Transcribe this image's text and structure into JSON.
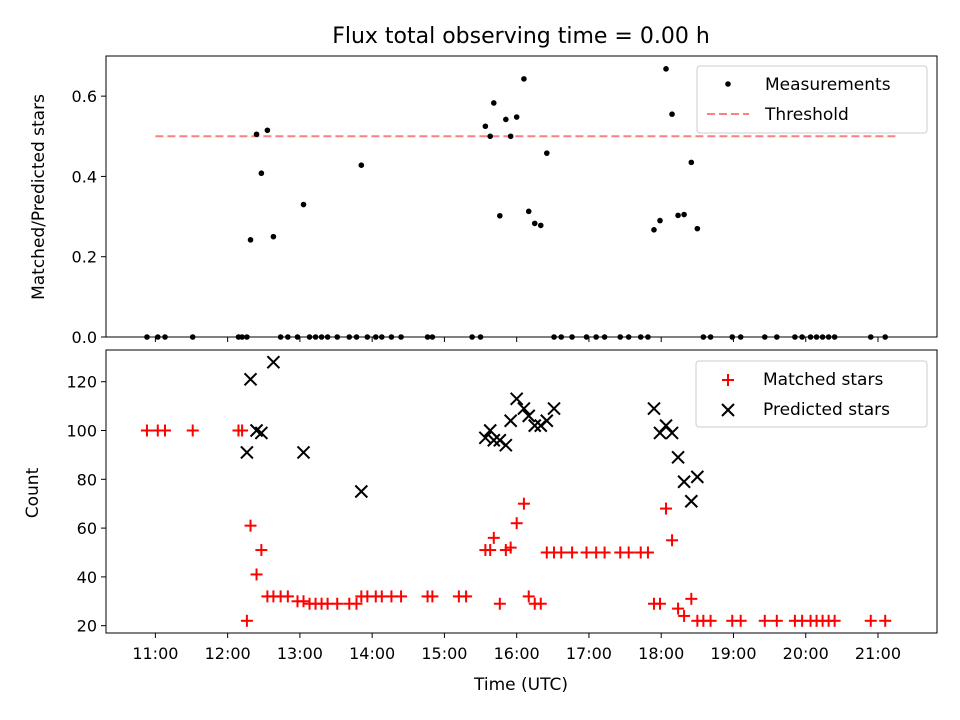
{
  "chart_data": [
    {
      "type": "scatter",
      "title": "Flux total observing time = 0.00 h",
      "ylabel": "Matched/Predicted stars",
      "ylim": [
        0,
        0.7
      ],
      "yticks": [
        "0.0",
        "0.2",
        "0.4",
        "0.6"
      ],
      "legend": "top-right",
      "grid": false,
      "threshold": {
        "name": "Threshold",
        "value": 0.5,
        "x_start": "11:00",
        "x_end": "21:15",
        "color": "#ff7f7f"
      },
      "series": [
        {
          "name": "Measurements",
          "color": "#000000",
          "points": [
            [
              "10:53",
              0
            ],
            [
              "11:02",
              0
            ],
            [
              "11:08",
              0
            ],
            [
              "11:31",
              0
            ],
            [
              "12:09",
              0
            ],
            [
              "12:12",
              0
            ],
            [
              "12:16",
              0
            ],
            [
              "12:19",
              0.242
            ],
            [
              "12:24",
              0.505
            ],
            [
              "12:28",
              0.408
            ],
            [
              "12:33",
              0.515
            ],
            [
              "12:38",
              0.25
            ],
            [
              "12:44",
              0
            ],
            [
              "12:50",
              0
            ],
            [
              "12:58",
              0
            ],
            [
              "13:03",
              0.33
            ],
            [
              "13:08",
              0
            ],
            [
              "13:13",
              0
            ],
            [
              "13:18",
              0
            ],
            [
              "13:23",
              0
            ],
            [
              "13:31",
              0
            ],
            [
              "13:41",
              0
            ],
            [
              "13:47",
              0
            ],
            [
              "13:51",
              0.428
            ],
            [
              "13:56",
              0
            ],
            [
              "14:03",
              0
            ],
            [
              "14:08",
              0
            ],
            [
              "14:16",
              0
            ],
            [
              "14:24",
              0
            ],
            [
              "14:46",
              0
            ],
            [
              "14:50",
              0
            ],
            [
              "15:23",
              0
            ],
            [
              "15:30",
              0
            ],
            [
              "15:34",
              0.525
            ],
            [
              "15:38",
              0.5
            ],
            [
              "15:41",
              0.583
            ],
            [
              "15:46",
              0.302
            ],
            [
              "15:51",
              0.542
            ],
            [
              "15:55",
              0.5
            ],
            [
              "16:00",
              0.548
            ],
            [
              "16:06",
              0.643
            ],
            [
              "16:10",
              0.313
            ],
            [
              "16:15",
              0.283
            ],
            [
              "16:20",
              0.278
            ],
            [
              "16:25",
              0.458
            ],
            [
              "16:31",
              0
            ],
            [
              "16:37",
              0
            ],
            [
              "16:46",
              0
            ],
            [
              "16:58",
              0
            ],
            [
              "17:06",
              0
            ],
            [
              "17:13",
              0
            ],
            [
              "17:26",
              0
            ],
            [
              "17:33",
              0
            ],
            [
              "17:43",
              0
            ],
            [
              "17:49",
              0
            ],
            [
              "17:54",
              0.267
            ],
            [
              "17:59",
              0.29
            ],
            [
              "18:04",
              0.668
            ],
            [
              "18:09",
              0.555
            ],
            [
              "18:14",
              0.303
            ],
            [
              "18:19",
              0.305
            ],
            [
              "18:25",
              0.435
            ],
            [
              "18:30",
              0.27
            ],
            [
              "18:35",
              0
            ],
            [
              "18:41",
              0
            ],
            [
              "18:59",
              0
            ],
            [
              "19:06",
              0
            ],
            [
              "19:26",
              0
            ],
            [
              "19:36",
              0
            ],
            [
              "19:51",
              0
            ],
            [
              "19:57",
              0
            ],
            [
              "20:04",
              0
            ],
            [
              "20:09",
              0
            ],
            [
              "20:14",
              0
            ],
            [
              "20:19",
              0
            ],
            [
              "20:24",
              0
            ],
            [
              "20:54",
              0
            ],
            [
              "21:06",
              0
            ]
          ]
        }
      ]
    },
    {
      "type": "scatter",
      "xlabel": "Time (UTC)",
      "ylabel": "Count",
      "xlim": [
        "10:19",
        "21:49"
      ],
      "ylim": [
        17,
        133
      ],
      "xticks": [
        "11:00",
        "12:00",
        "13:00",
        "14:00",
        "15:00",
        "16:00",
        "17:00",
        "18:00",
        "19:00",
        "20:00",
        "21:00"
      ],
      "yticks": [
        "20",
        "40",
        "60",
        "80",
        "100",
        "120"
      ],
      "legend": "top-right",
      "grid": false,
      "series": [
        {
          "name": "Matched stars",
          "color": "#ff0000",
          "points": [
            [
              "10:53",
              100
            ],
            [
              "11:02",
              100
            ],
            [
              "11:08",
              100
            ],
            [
              "11:31",
              100
            ],
            [
              "12:09",
              100
            ],
            [
              "12:12",
              100
            ],
            [
              "12:16",
              22
            ],
            [
              "12:19",
              61
            ],
            [
              "12:24",
              41
            ],
            [
              "12:28",
              51
            ],
            [
              "12:33",
              32
            ],
            [
              "12:38",
              32
            ],
            [
              "12:44",
              32
            ],
            [
              "12:50",
              32
            ],
            [
              "12:58",
              30
            ],
            [
              "13:03",
              30
            ],
            [
              "13:08",
              29
            ],
            [
              "13:13",
              29
            ],
            [
              "13:18",
              29
            ],
            [
              "13:23",
              29
            ],
            [
              "13:31",
              29
            ],
            [
              "13:41",
              29
            ],
            [
              "13:47",
              29
            ],
            [
              "13:51",
              32
            ],
            [
              "13:56",
              32
            ],
            [
              "14:03",
              32
            ],
            [
              "14:08",
              32
            ],
            [
              "14:16",
              32
            ],
            [
              "14:24",
              32
            ],
            [
              "14:46",
              32
            ],
            [
              "14:50",
              32
            ],
            [
              "15:12",
              32
            ],
            [
              "15:18",
              32
            ],
            [
              "15:34",
              51
            ],
            [
              "15:38",
              51
            ],
            [
              "15:41",
              56
            ],
            [
              "15:46",
              29
            ],
            [
              "15:51",
              51
            ],
            [
              "15:55",
              52
            ],
            [
              "16:00",
              62
            ],
            [
              "16:06",
              70
            ],
            [
              "16:10",
              32
            ],
            [
              "16:15",
              29
            ],
            [
              "16:20",
              29
            ],
            [
              "16:25",
              50
            ],
            [
              "16:31",
              50
            ],
            [
              "16:37",
              50
            ],
            [
              "16:46",
              50
            ],
            [
              "16:58",
              50
            ],
            [
              "17:06",
              50
            ],
            [
              "17:13",
              50
            ],
            [
              "17:26",
              50
            ],
            [
              "17:33",
              50
            ],
            [
              "17:43",
              50
            ],
            [
              "17:49",
              50
            ],
            [
              "17:54",
              29
            ],
            [
              "17:59",
              29
            ],
            [
              "18:04",
              68
            ],
            [
              "18:09",
              55
            ],
            [
              "18:14",
              27
            ],
            [
              "18:19",
              24
            ],
            [
              "18:25",
              31
            ],
            [
              "18:30",
              22
            ],
            [
              "18:35",
              22
            ],
            [
              "18:41",
              22
            ],
            [
              "18:59",
              22
            ],
            [
              "19:06",
              22
            ],
            [
              "19:26",
              22
            ],
            [
              "19:36",
              22
            ],
            [
              "19:51",
              22
            ],
            [
              "19:57",
              22
            ],
            [
              "20:04",
              22
            ],
            [
              "20:09",
              22
            ],
            [
              "20:14",
              22
            ],
            [
              "20:19",
              22
            ],
            [
              "20:24",
              22
            ],
            [
              "20:54",
              22
            ],
            [
              "21:06",
              22
            ]
          ]
        },
        {
          "name": "Predicted stars",
          "color": "#000000",
          "points": [
            [
              "12:16",
              91
            ],
            [
              "12:19",
              121
            ],
            [
              "12:24",
              100
            ],
            [
              "12:28",
              99
            ],
            [
              "12:38",
              128
            ],
            [
              "13:03",
              91
            ],
            [
              "13:51",
              75
            ],
            [
              "15:34",
              97
            ],
            [
              "15:38",
              100
            ],
            [
              "15:41",
              96
            ],
            [
              "15:46",
              96
            ],
            [
              "15:51",
              94
            ],
            [
              "15:55",
              104
            ],
            [
              "16:00",
              113
            ],
            [
              "16:06",
              109
            ],
            [
              "16:10",
              106
            ],
            [
              "16:15",
              102
            ],
            [
              "16:20",
              102
            ],
            [
              "16:25",
              104
            ],
            [
              "16:31",
              109
            ],
            [
              "17:54",
              109
            ],
            [
              "17:59",
              99
            ],
            [
              "18:04",
              102
            ],
            [
              "18:09",
              99
            ],
            [
              "18:14",
              89
            ],
            [
              "18:19",
              79
            ],
            [
              "18:25",
              71
            ],
            [
              "18:30",
              81
            ]
          ]
        }
      ]
    }
  ]
}
